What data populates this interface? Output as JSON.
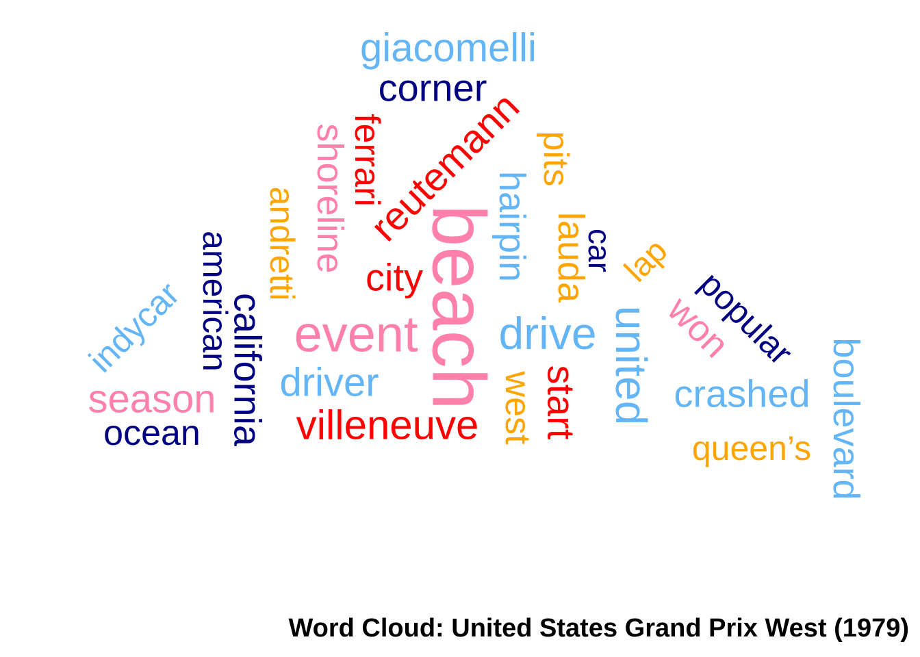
{
  "caption": "Word Cloud: United States Grand Prix West (1979)",
  "colors": {
    "pink": "#ff80ab",
    "red": "#ff0000",
    "navy": "#000080",
    "sky": "#64b5f6",
    "orange": "#ffa500"
  },
  "words": [
    {
      "text": "giacomelli",
      "color": "sky"
    },
    {
      "text": "corner",
      "color": "navy"
    },
    {
      "text": "shoreline",
      "color": "pink"
    },
    {
      "text": "ferrari",
      "color": "red"
    },
    {
      "text": "reutemann",
      "color": "red"
    },
    {
      "text": "hairpin",
      "color": "sky"
    },
    {
      "text": "pits",
      "color": "orange"
    },
    {
      "text": "andretti",
      "color": "orange"
    },
    {
      "text": "lauda",
      "color": "orange"
    },
    {
      "text": "american",
      "color": "navy"
    },
    {
      "text": "car",
      "color": "navy"
    },
    {
      "text": "beach",
      "color": "pink"
    },
    {
      "text": "lap",
      "color": "orange"
    },
    {
      "text": "city",
      "color": "red"
    },
    {
      "text": "california",
      "color": "navy"
    },
    {
      "text": "popular",
      "color": "navy"
    },
    {
      "text": "indycar",
      "color": "sky"
    },
    {
      "text": "won",
      "color": "pink"
    },
    {
      "text": "event",
      "color": "pink"
    },
    {
      "text": "drive",
      "color": "sky"
    },
    {
      "text": "united",
      "color": "sky"
    },
    {
      "text": "boulevard",
      "color": "sky"
    },
    {
      "text": "west",
      "color": "orange"
    },
    {
      "text": "driver",
      "color": "sky"
    },
    {
      "text": "start",
      "color": "red"
    },
    {
      "text": "season",
      "color": "pink"
    },
    {
      "text": "crashed",
      "color": "sky"
    },
    {
      "text": "villeneuve",
      "color": "red"
    },
    {
      "text": "ocean",
      "color": "navy"
    },
    {
      "text": "queen’s",
      "color": "orange"
    }
  ]
}
